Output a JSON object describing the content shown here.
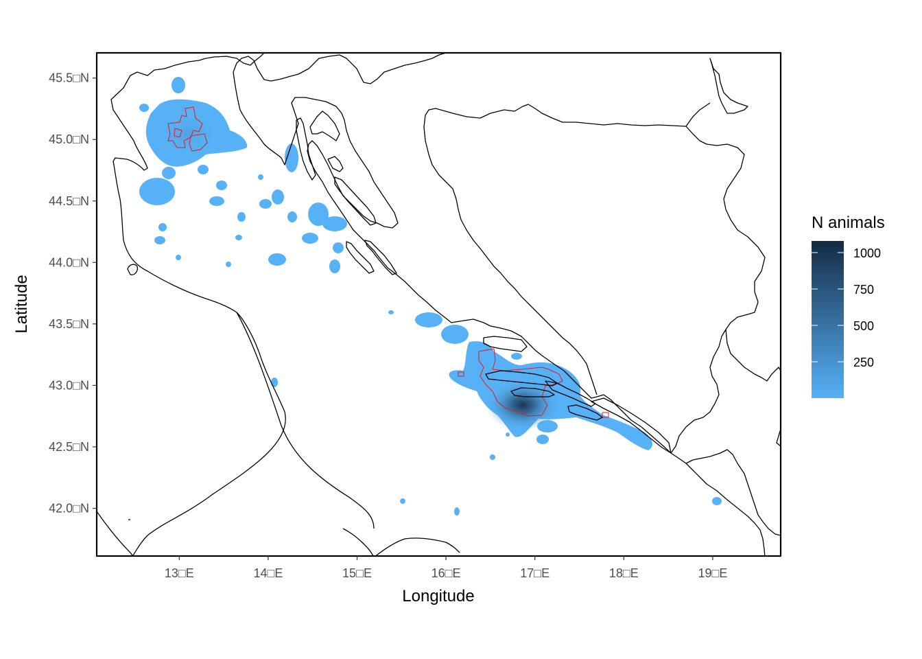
{
  "chart_data": {
    "type": "heatmap",
    "xlabel": "Longitude",
    "ylabel": "Latitude",
    "xlim": [
      12.05,
      19.75
    ],
    "ylim": [
      41.6,
      45.8
    ],
    "x_ticks": [
      {
        "value": 13,
        "label": "13□E"
      },
      {
        "value": 14,
        "label": "14□E"
      },
      {
        "value": 15,
        "label": "15□E"
      },
      {
        "value": 16,
        "label": "16□E"
      },
      {
        "value": 17,
        "label": "17□E"
      },
      {
        "value": 18,
        "label": "18□E"
      },
      {
        "value": 19,
        "label": "19□E"
      }
    ],
    "y_ticks": [
      {
        "value": 42.0,
        "label": "42.0□N"
      },
      {
        "value": 42.5,
        "label": "42.5□N"
      },
      {
        "value": 43.0,
        "label": "43.0□N"
      },
      {
        "value": 43.5,
        "label": "43.5□N"
      },
      {
        "value": 44.0,
        "label": "44.0□N"
      },
      {
        "value": 44.5,
        "label": "44.5□N"
      },
      {
        "value": 45.0,
        "label": "45.0□N"
      },
      {
        "value": 45.5,
        "label": "45.5□N"
      }
    ],
    "legend": {
      "title": "N animals",
      "placement": "right",
      "range": [
        0,
        1080
      ],
      "breaks": [
        {
          "value": 250,
          "label": "250"
        },
        {
          "value": 500,
          "label": "500"
        },
        {
          "value": 750,
          "label": "750"
        },
        {
          "value": 1000,
          "label": "1000"
        }
      ],
      "low_color": "#56b1f7",
      "high_color": "#132b43"
    },
    "grid": false,
    "hotspots": [
      {
        "lon": 13.1,
        "lat": 45.0,
        "peak": 120
      },
      {
        "lon": 16.85,
        "lat": 42.82,
        "peak": 1080
      }
    ],
    "colors": {
      "coastline": "#000000",
      "outline_polygons": "#e41a1c"
    }
  }
}
